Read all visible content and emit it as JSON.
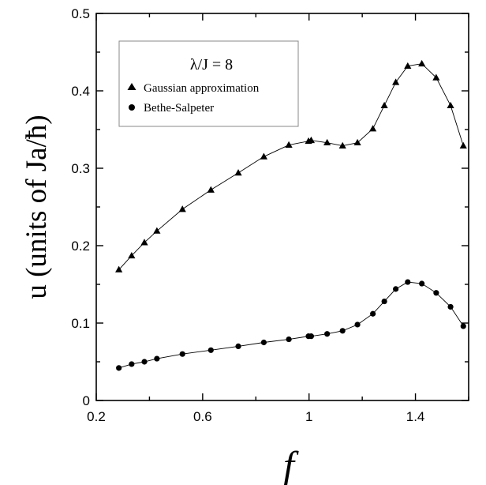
{
  "chart_data": {
    "type": "line",
    "title": "",
    "xlabel": "f",
    "ylabel": "u (units of Ja/ħ)",
    "xlim": [
      0.2,
      1.6
    ],
    "ylim": [
      0,
      0.5
    ],
    "x_ticks": [
      0.2,
      0.6,
      1,
      1.4
    ],
    "x_tick_labels": [
      "0.2",
      "0.6",
      "1",
      "1.4"
    ],
    "y_ticks": [
      0,
      0.1,
      0.2,
      0.3,
      0.4,
      0.5
    ],
    "y_tick_labels": [
      "0",
      "0.1",
      "0.2",
      "0.3",
      "0.4",
      "0.5"
    ],
    "grid": false,
    "legend": {
      "position": "top-left",
      "title": "λ/J = 8",
      "entries": [
        "Gaussian approximation",
        "Bethe-Salpeter"
      ]
    },
    "series": [
      {
        "name": "Gaussian approximation",
        "marker": "triangle",
        "x": [
          0.285,
          0.333,
          0.381,
          0.428,
          0.524,
          0.631,
          0.734,
          0.83,
          0.924,
          0.998,
          1.008,
          1.068,
          1.126,
          1.182,
          1.24,
          1.283,
          1.326,
          1.371,
          1.424,
          1.478,
          1.532,
          1.58
        ],
        "y": [
          0.169,
          0.187,
          0.204,
          0.219,
          0.247,
          0.272,
          0.294,
          0.315,
          0.33,
          0.335,
          0.336,
          0.333,
          0.329,
          0.333,
          0.351,
          0.381,
          0.411,
          0.432,
          0.435,
          0.417,
          0.381,
          0.329
        ]
      },
      {
        "name": "Bethe-Salpeter",
        "marker": "circle",
        "x": [
          0.285,
          0.333,
          0.381,
          0.428,
          0.524,
          0.631,
          0.734,
          0.83,
          0.924,
          0.998,
          1.008,
          1.068,
          1.126,
          1.182,
          1.24,
          1.283,
          1.326,
          1.371,
          1.424,
          1.478,
          1.532,
          1.58
        ],
        "y": [
          0.042,
          0.047,
          0.05,
          0.054,
          0.06,
          0.065,
          0.07,
          0.075,
          0.079,
          0.083,
          0.083,
          0.086,
          0.09,
          0.098,
          0.112,
          0.128,
          0.144,
          0.153,
          0.151,
          0.139,
          0.121,
          0.096
        ]
      }
    ]
  }
}
